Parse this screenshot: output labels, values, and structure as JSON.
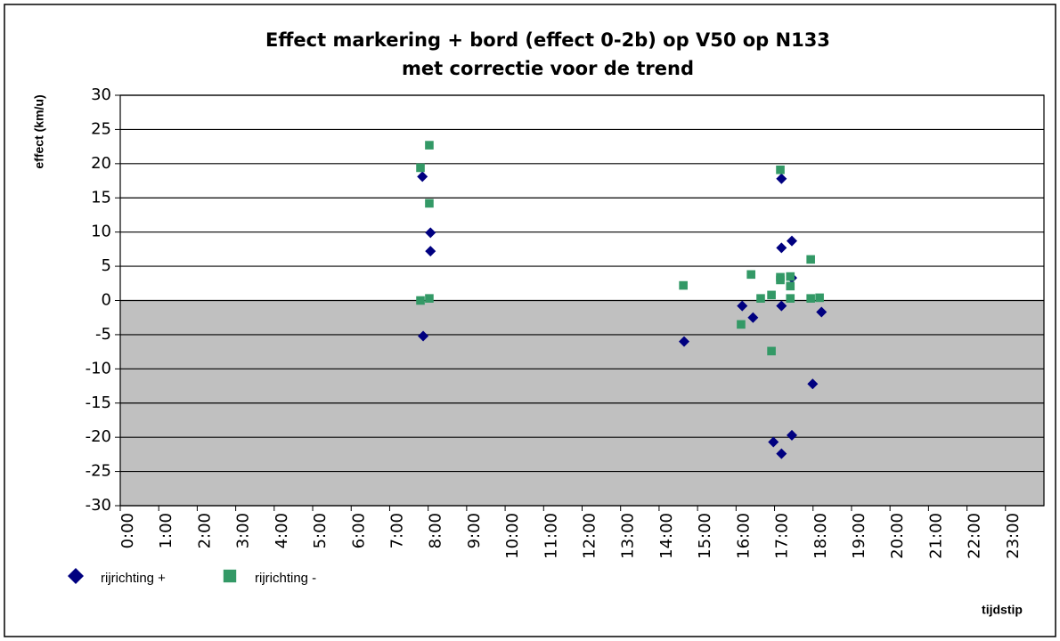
{
  "chart_data": {
    "type": "scatter",
    "title": "Effect markering + bord (effect 0-2b) op V50 op N133",
    "subtitle": "met correctie voor de trend",
    "x_label": "tijdstip",
    "y_label": "effect (km/u)",
    "xlim": [
      0,
      24
    ],
    "ylim": [
      -30,
      30
    ],
    "xticks": [
      {
        "value": 0,
        "label": "0:00"
      },
      {
        "value": 1,
        "label": "1:00"
      },
      {
        "value": 2,
        "label": "2:00"
      },
      {
        "value": 3,
        "label": "3:00"
      },
      {
        "value": 4,
        "label": "4:00"
      },
      {
        "value": 5,
        "label": "5:00"
      },
      {
        "value": 6,
        "label": "6:00"
      },
      {
        "value": 7,
        "label": "7:00"
      },
      {
        "value": 8,
        "label": "8:00"
      },
      {
        "value": 9,
        "label": "9:00"
      },
      {
        "value": 10,
        "label": "10:00"
      },
      {
        "value": 11,
        "label": "11:00"
      },
      {
        "value": 12,
        "label": "12:00"
      },
      {
        "value": 13,
        "label": "13:00"
      },
      {
        "value": 14,
        "label": "14:00"
      },
      {
        "value": 15,
        "label": "15:00"
      },
      {
        "value": 16,
        "label": "16:00"
      },
      {
        "value": 17,
        "label": "17:00"
      },
      {
        "value": 18,
        "label": "18:00"
      },
      {
        "value": 19,
        "label": "19:00"
      },
      {
        "value": 20,
        "label": "20:00"
      },
      {
        "value": 21,
        "label": "21:00"
      },
      {
        "value": 22,
        "label": "22:00"
      },
      {
        "value": 23,
        "label": "23:00"
      }
    ],
    "yticks": [
      -30,
      -25,
      -20,
      -15,
      -10,
      -5,
      0,
      5,
      10,
      15,
      20,
      25,
      30
    ],
    "grid": true,
    "series": [
      {
        "name": "rijrichting +",
        "color": "#000080",
        "marker": "diamond",
        "x": [
          7.85,
          7.87,
          8.06,
          8.06,
          14.65,
          16.16,
          16.44,
          16.97,
          17.18,
          17.18,
          17.18,
          17.18,
          17.45,
          17.45,
          17.45,
          17.99,
          18.22
        ],
        "values": [
          18.1,
          -5.2,
          9.9,
          7.2,
          -6.0,
          -0.8,
          -2.5,
          -20.7,
          -22.4,
          17.8,
          7.7,
          -0.8,
          8.7,
          -19.7,
          3.3,
          -12.2,
          -1.7
        ]
      },
      {
        "name": "rijrichting -",
        "color": "#339966",
        "marker": "square",
        "x": [
          7.8,
          8.03,
          8.03,
          7.8,
          8.03,
          14.63,
          16.13,
          16.39,
          16.64,
          16.92,
          16.92,
          17.15,
          17.15,
          17.15,
          17.41,
          17.41,
          17.41,
          17.94,
          17.94,
          18.17
        ],
        "values": [
          19.4,
          22.7,
          14.2,
          0,
          0.3,
          2.2,
          -3.5,
          3.8,
          0.3,
          -7.4,
          0.8,
          19.1,
          3.4,
          3.0,
          3.5,
          2.1,
          0.3,
          6.0,
          0.3,
          0.4
        ]
      }
    ]
  }
}
